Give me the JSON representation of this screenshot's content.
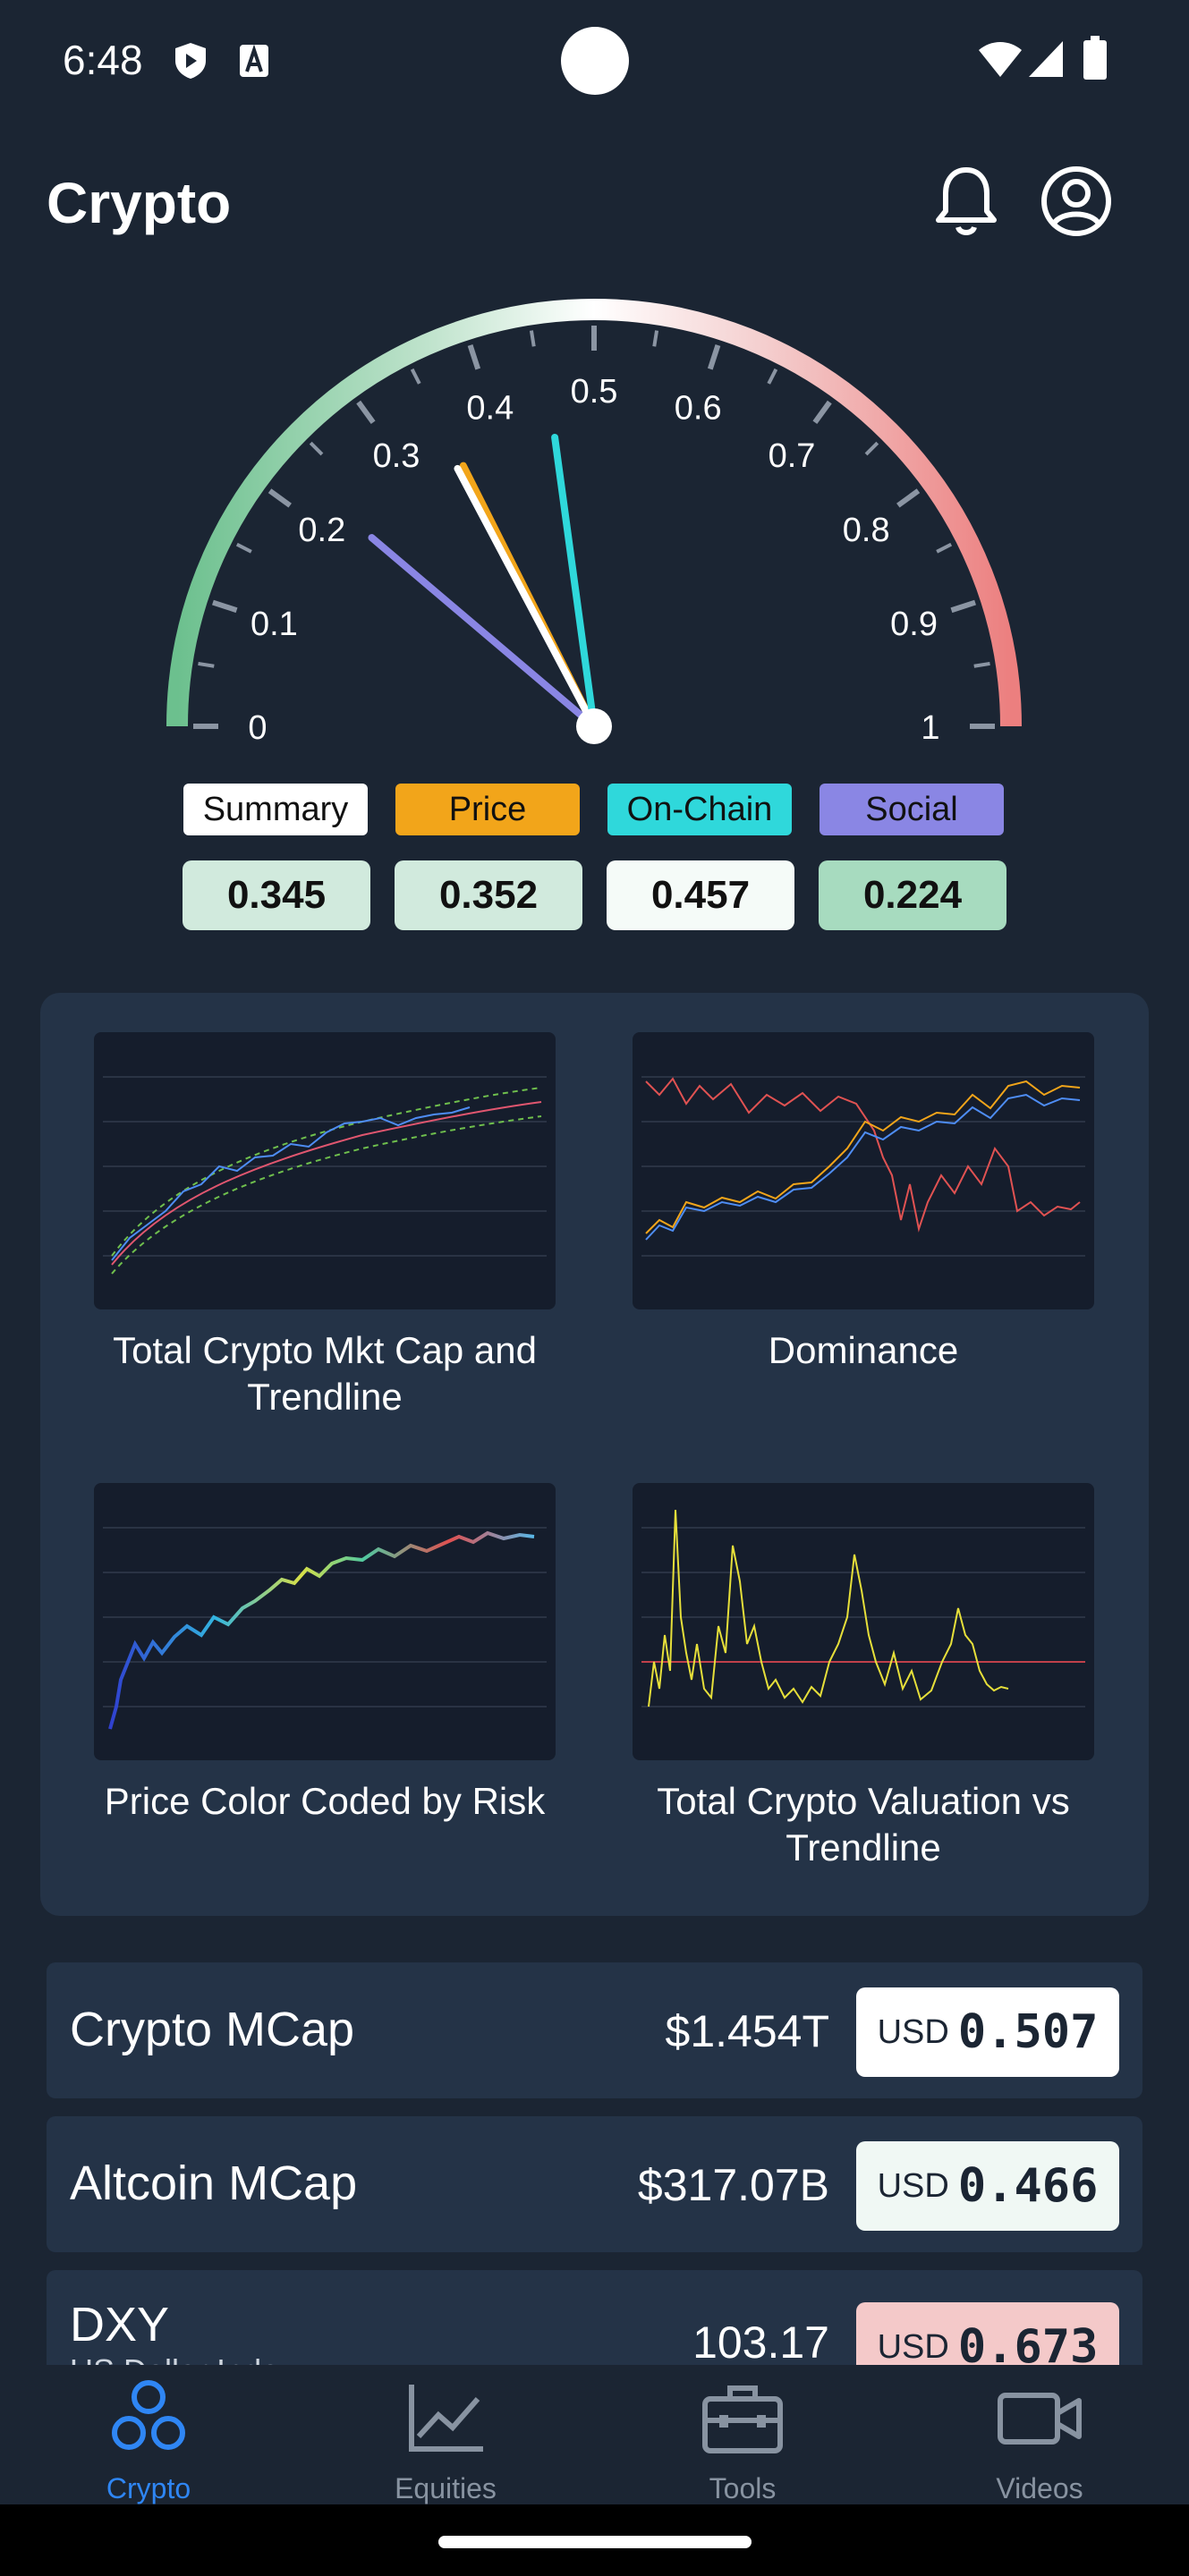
{
  "status_bar": {
    "time": "6:48"
  },
  "app_bar": {
    "title": "Crypto"
  },
  "gauge": {
    "ticks": [
      "0",
      "0.1",
      "0.2",
      "0.3",
      "0.4",
      "0.5",
      "0.6",
      "0.7",
      "0.8",
      "0.9",
      "1"
    ],
    "needles": [
      {
        "name": "Social",
        "value": 0.224,
        "color": "#8a86e4"
      },
      {
        "name": "Price",
        "value": 0.352,
        "color": "#f2a51a"
      },
      {
        "name": "Summary",
        "value": 0.345,
        "color": "#ffffff"
      },
      {
        "name": "On-Chain",
        "value": 0.457,
        "color": "#2fd8db"
      }
    ]
  },
  "legend": [
    {
      "label": "Summary",
      "value": "0.345",
      "chip_color": "#ffffff",
      "chip_text": "#111111",
      "value_bg": "#d1eadd"
    },
    {
      "label": "Price",
      "value": "0.352",
      "chip_color": "#f2a51a",
      "chip_text": "#111111",
      "value_bg": "#d1eadd"
    },
    {
      "label": "On-Chain",
      "value": "0.457",
      "chip_color": "#2fd8db",
      "chip_text": "#111111",
      "value_bg": "#f5fbf8"
    },
    {
      "label": "Social",
      "value": "0.224",
      "chip_color": "#8a86e4",
      "chip_text": "#111111",
      "value_bg": "#a7dbbf"
    }
  ],
  "charts": [
    {
      "label": "Total Crypto Mkt Cap and Trendline"
    },
    {
      "label": "Dominance"
    },
    {
      "label": "Price Color Coded by Risk"
    },
    {
      "label": "Total Crypto Valuation vs Trendline"
    }
  ],
  "metrics": [
    {
      "title": "Crypto MCap",
      "subtitle": "",
      "value": "$1.454T",
      "currency": "USD",
      "risk": "0.507",
      "badge_bg": "#ffffff"
    },
    {
      "title": "Altcoin MCap",
      "subtitle": "",
      "value": "$317.07B",
      "currency": "USD",
      "risk": "0.466",
      "badge_bg": "#f0f8f4"
    },
    {
      "title": "DXY",
      "subtitle": "US Dollar Index",
      "value": "103.17",
      "currency": "USD",
      "risk": "0.673",
      "badge_bg": "#f4c9c9"
    }
  ],
  "nav": [
    {
      "label": "Crypto",
      "icon": "crypto-icon",
      "active": true
    },
    {
      "label": "Equities",
      "icon": "chart-line-icon",
      "active": false
    },
    {
      "label": "Tools",
      "icon": "toolbox-icon",
      "active": false
    },
    {
      "label": "Videos",
      "icon": "video-icon",
      "active": false
    }
  ],
  "colors": {
    "accent": "#2f86f4",
    "background": "#1b2533",
    "card": "#243347"
  }
}
